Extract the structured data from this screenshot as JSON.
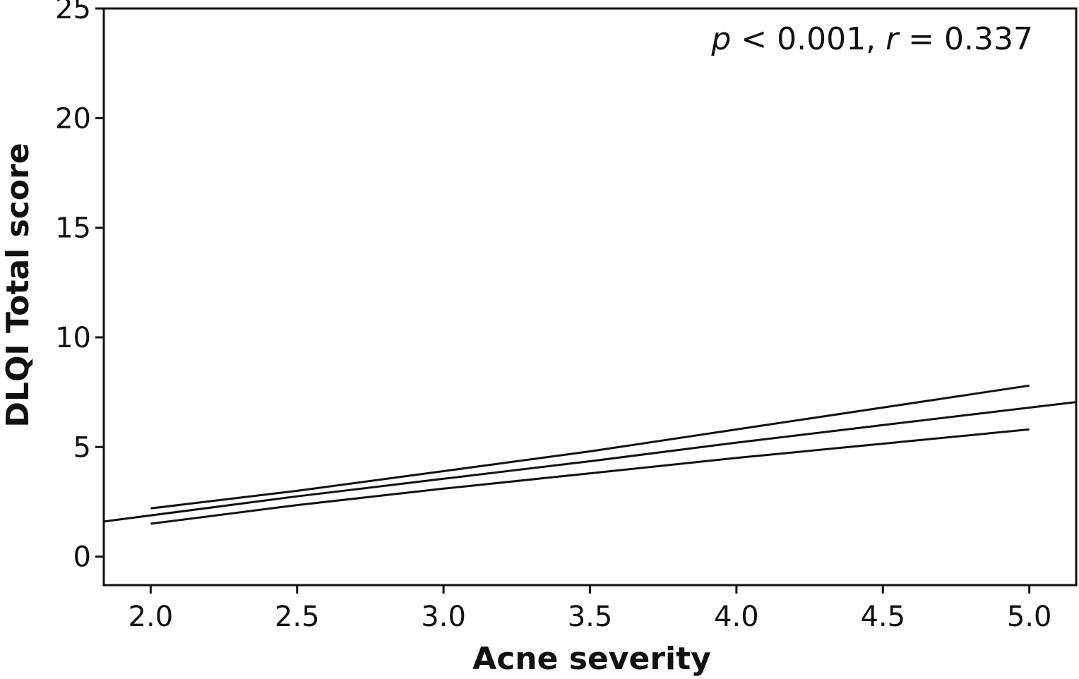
{
  "chart_data": {
    "type": "line",
    "title": "",
    "xlabel": "Acne severity",
    "ylabel": "DLQI Total score",
    "xlim": [
      1.84,
      5.16
    ],
    "ylim": [
      -1.3,
      25
    ],
    "x_ticks": [
      2.0,
      2.5,
      3.0,
      3.5,
      4.0,
      4.5,
      5.0
    ],
    "x_tick_labels": [
      "2.0",
      "2.5",
      "3.0",
      "3.5",
      "4.0",
      "4.5",
      "5.0"
    ],
    "y_ticks": [
      0,
      5,
      10,
      15,
      20,
      25
    ],
    "y_tick_labels": [
      "0",
      "5",
      "10",
      "15",
      "20",
      "25"
    ],
    "grid": false,
    "annotation": {
      "p_symbol": "p",
      "p_rest": " < 0.001, ",
      "r_symbol": "r",
      "r_rest": " = 0.337"
    },
    "series": [
      {
        "role": "upper-ci",
        "x": [
          2.0,
          2.5,
          3.0,
          3.5,
          4.0,
          4.5,
          5.0
        ],
        "y": [
          2.2,
          3.0,
          3.9,
          4.8,
          5.8,
          6.8,
          7.8
        ]
      },
      {
        "role": "regression",
        "x": [
          1.84,
          2.5,
          3.0,
          3.5,
          4.0,
          4.5,
          5.16
        ],
        "y": [
          1.6,
          2.75,
          3.55,
          4.35,
          5.2,
          6.0,
          7.05
        ]
      },
      {
        "role": "lower-ci",
        "x": [
          2.0,
          2.5,
          3.0,
          3.5,
          4.0,
          4.5,
          5.0
        ],
        "y": [
          1.5,
          2.35,
          3.1,
          3.8,
          4.5,
          5.15,
          5.8
        ]
      }
    ]
  }
}
